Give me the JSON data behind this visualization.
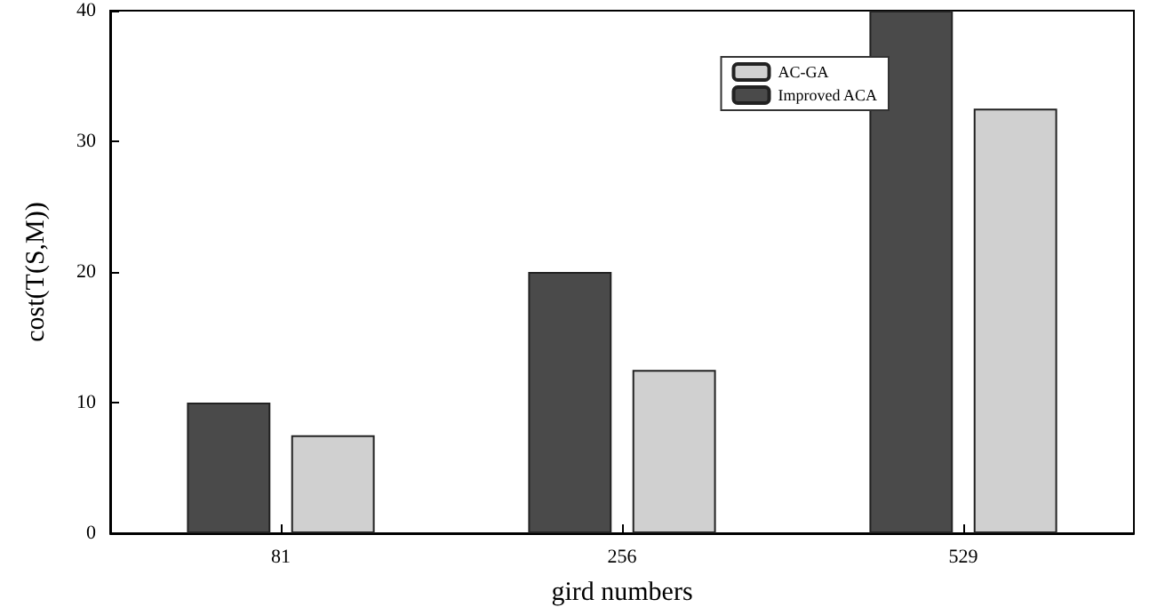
{
  "chart_data": {
    "type": "bar",
    "xlabel": "gird numbers",
    "ylabel": "cost(T(S,M))",
    "categories": [
      "81",
      "256",
      "529"
    ],
    "series": [
      {
        "name": "Improved ACA",
        "color": "#4a4a4a",
        "values": [
          10,
          20,
          40
        ]
      },
      {
        "name": "AC-GA",
        "color": "#d0d0d0",
        "values": [
          7.5,
          12.5,
          32.5
        ]
      }
    ],
    "ylim": [
      0,
      40
    ],
    "yticks": [
      0,
      10,
      20,
      30,
      40
    ],
    "grid": false,
    "legend": "top right"
  }
}
